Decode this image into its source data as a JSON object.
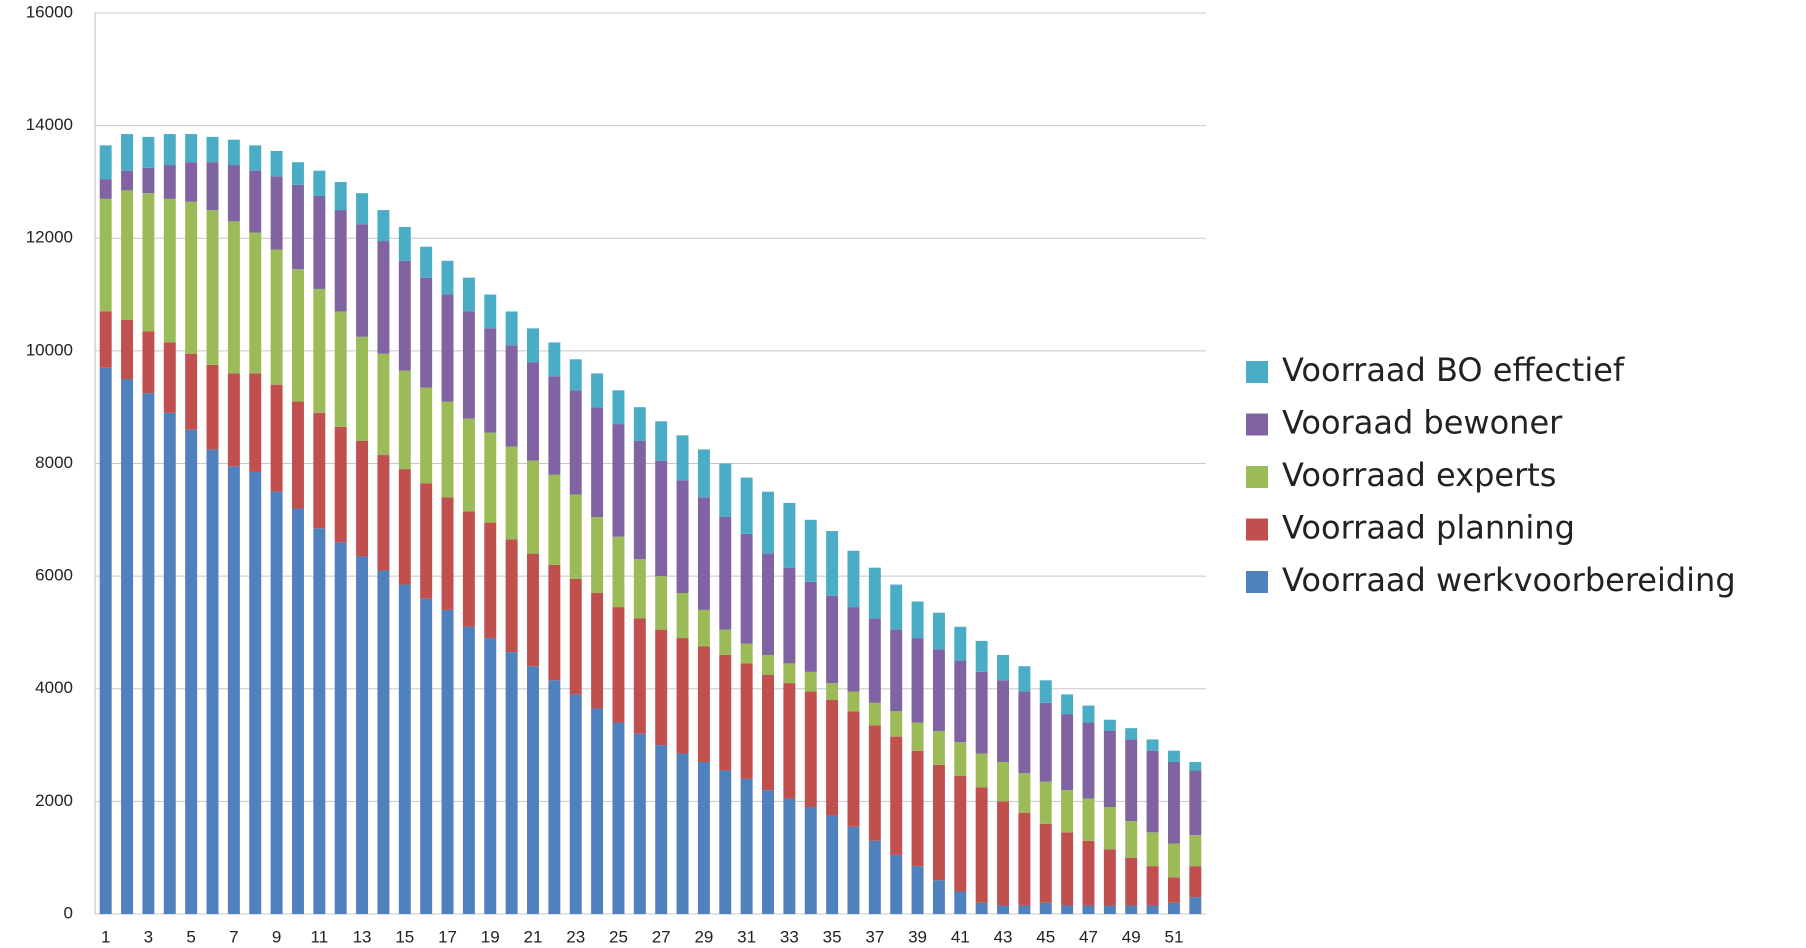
{
  "chart_data": {
    "type": "stacked_bar",
    "categories": [
      "1",
      null,
      "3",
      null,
      "5",
      null,
      "7",
      null,
      "9",
      null,
      "11",
      null,
      "13",
      null,
      "15",
      null,
      "17",
      null,
      "19",
      null,
      "21",
      null,
      "23",
      null,
      "25",
      null,
      "27",
      null,
      "29",
      null,
      "31",
      null,
      "33",
      null,
      "35",
      null,
      "37",
      null,
      "39",
      null,
      "41",
      null,
      "43",
      null,
      "45",
      null,
      "47",
      null,
      "49",
      null,
      "51",
      null
    ],
    "series": [
      {
        "name": "Voorraad werkvoorbereiding",
        "color": "#4f81bd",
        "values": [
          9700,
          9500,
          9250,
          8900,
          8600,
          8250,
          7950,
          7850,
          7500,
          7200,
          6850,
          6600,
          6350,
          6100,
          5850,
          5600,
          5400,
          5100,
          4900,
          4650,
          4400,
          4150,
          3900,
          3650,
          3400,
          3200,
          3000,
          2850,
          2700,
          2550,
          2400,
          2200,
          2050,
          1900,
          1750,
          1550,
          1300,
          1050,
          850,
          600,
          400,
          200,
          150,
          150,
          200,
          150,
          150,
          150,
          150,
          150,
          200,
          300
        ]
      },
      {
        "name": "Voorraad planning",
        "color": "#c0504d",
        "values": [
          1000,
          1050,
          1100,
          1250,
          1350,
          1500,
          1650,
          1750,
          1900,
          1900,
          2050,
          2050,
          2050,
          2050,
          2050,
          2050,
          2000,
          2050,
          2050,
          2000,
          2000,
          2050,
          2050,
          2050,
          2050,
          2050,
          2050,
          2050,
          2050,
          2050,
          2050,
          2050,
          2050,
          2050,
          2050,
          2050,
          2050,
          2100,
          2050,
          2050,
          2050,
          2050,
          1850,
          1650,
          1400,
          1300,
          1150,
          1000,
          850,
          700,
          450,
          550
        ]
      },
      {
        "name": "Voorraad experts",
        "color": "#9bbb59",
        "values": [
          2000,
          2300,
          2450,
          2550,
          2700,
          2750,
          2700,
          2500,
          2400,
          2350,
          2200,
          2050,
          1850,
          1800,
          1750,
          1700,
          1700,
          1650,
          1600,
          1650,
          1650,
          1600,
          1500,
          1350,
          1250,
          1050,
          950,
          800,
          650,
          450,
          350,
          350,
          350,
          350,
          300,
          350,
          400,
          450,
          500,
          600,
          600,
          600,
          700,
          700,
          750,
          750,
          750,
          750,
          650,
          600,
          600,
          550
        ]
      },
      {
        "name": "Vooraad bewoner",
        "color": "#8064a2",
        "values": [
          350,
          350,
          450,
          600,
          700,
          850,
          1000,
          1100,
          1300,
          1500,
          1650,
          1800,
          2000,
          2000,
          1950,
          1950,
          1900,
          1900,
          1850,
          1800,
          1750,
          1750,
          1850,
          1950,
          2000,
          2100,
          2050,
          2000,
          2000,
          2000,
          1950,
          1800,
          1700,
          1600,
          1550,
          1500,
          1500,
          1450,
          1500,
          1450,
          1450,
          1450,
          1450,
          1450,
          1400,
          1350,
          1350,
          1350,
          1450,
          1450,
          1450,
          1150
        ]
      },
      {
        "name": "Voorraad BO effectief",
        "color": "#4bacc6",
        "values": [
          600,
          650,
          550,
          550,
          500,
          450,
          450,
          450,
          450,
          400,
          450,
          500,
          550,
          550,
          600,
          550,
          600,
          600,
          600,
          600,
          600,
          600,
          550,
          600,
          600,
          600,
          700,
          800,
          850,
          950,
          1000,
          1100,
          1150,
          1100,
          1150,
          1000,
          900,
          800,
          650,
          650,
          600,
          550,
          450,
          450,
          400,
          350,
          300,
          200,
          200,
          200,
          200,
          150
        ]
      }
    ],
    "ylim": [
      0,
      16000
    ],
    "yticks": [
      0,
      2000,
      4000,
      6000,
      8000,
      10000,
      12000,
      14000,
      16000
    ],
    "grid": true,
    "legend": "right"
  }
}
